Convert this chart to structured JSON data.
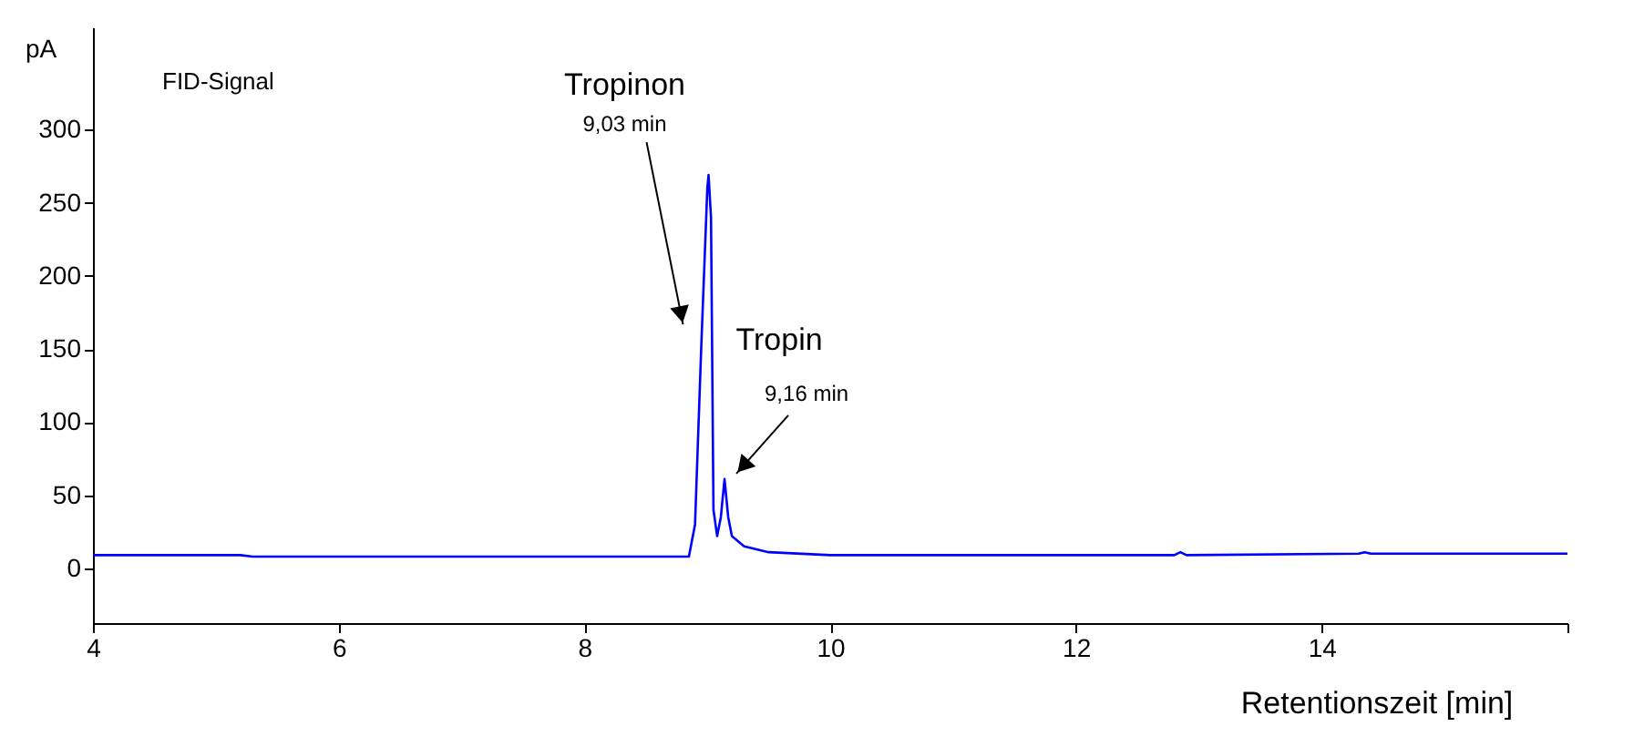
{
  "chart_data": {
    "type": "line",
    "ylabel": "pA",
    "xlabel": "Retentionszeit [min]",
    "x": [
      4,
      5.2,
      5.3,
      8.85,
      8.9,
      8.95,
      9.0,
      9.01,
      9.03,
      9.05,
      9.08,
      9.11,
      9.14,
      9.17,
      9.2,
      9.3,
      9.5,
      10,
      12.8,
      12.85,
      12.9,
      14.3,
      14.35,
      14.4,
      16
    ],
    "series": [
      {
        "color": "#0000ff",
        "values": [
          9,
          9,
          8,
          8,
          30,
          150,
          260,
          269,
          240,
          40,
          22,
          35,
          61,
          35,
          22,
          15,
          11,
          9,
          9,
          11,
          9,
          10,
          11,
          10,
          10
        ]
      }
    ],
    "annotations": [
      "FID-Signal",
      "Tropinon",
      {
        "text": "9,03 min",
        "x": 9.01,
        "y": 269
      },
      "Tropin",
      {
        "text": "9,16 min",
        "x": 9.14,
        "y": 61
      }
    ],
    "xlim": [
      4,
      16
    ],
    "xticks": [
      4,
      6,
      8,
      10,
      12,
      14,
      {
        "value": 16,
        "label": null
      }
    ],
    "ylim": [
      -37.5,
      370
    ],
    "yticks": [
      0,
      50,
      100,
      150,
      200,
      250,
      300
    ],
    "grid": false,
    "marker": "none",
    "line_style": "solid"
  }
}
